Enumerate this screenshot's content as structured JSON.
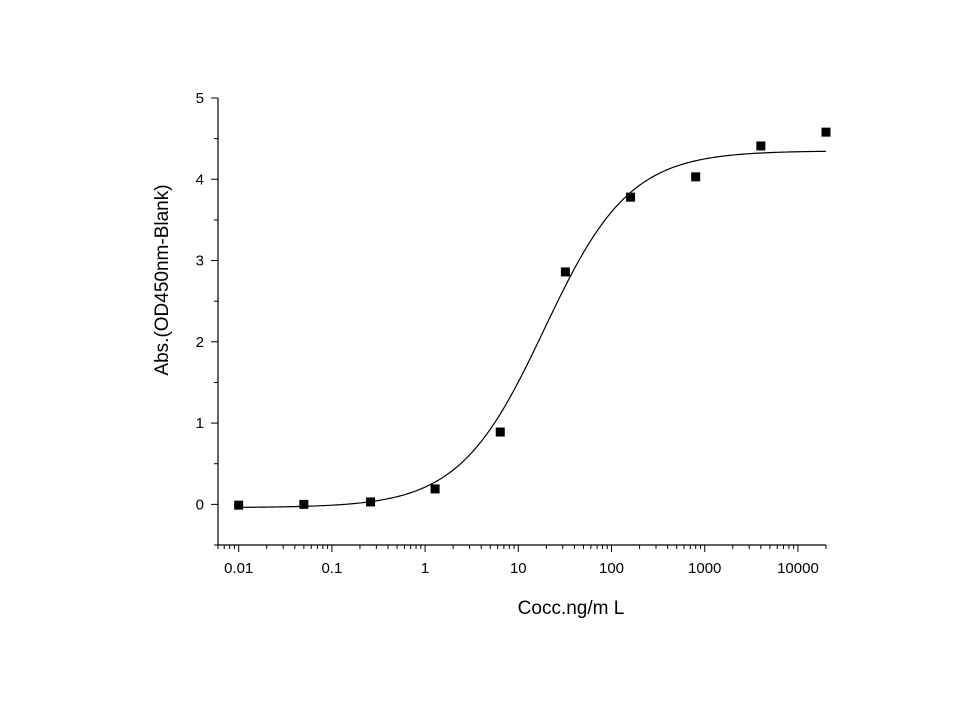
{
  "chart_data": {
    "type": "scatter",
    "xlabel": "Cocc.ng/m L",
    "ylabel": "Abs.(OD450nm-Blank)",
    "xscale": "log",
    "xlim": [
      0.006,
      20000
    ],
    "ylim": [
      -0.5,
      5
    ],
    "grid": false,
    "xticks": [
      0.01,
      0.1,
      1,
      10,
      100,
      1000,
      10000
    ],
    "xtick_labels": [
      "0.01",
      "0.1",
      "1",
      "10",
      "100",
      "1000",
      "10000"
    ],
    "yticks": [
      0,
      1,
      2,
      3,
      4,
      5
    ],
    "ytick_labels": [
      "0",
      "1",
      "2",
      "3",
      "4",
      "5"
    ],
    "series": [
      {
        "kind": "points",
        "marker": "square",
        "x": [
          0.01,
          0.05,
          0.26,
          1.28,
          6.4,
          32,
          160,
          800,
          4000,
          20000
        ],
        "y": [
          -0.01,
          0.0,
          0.03,
          0.19,
          0.89,
          2.86,
          3.78,
          4.03,
          4.41,
          4.58
        ]
      },
      {
        "kind": "fit",
        "model": "4PL",
        "bottom": -0.04,
        "top": 4.35,
        "ec50": 19,
        "hill": 0.95,
        "x_range": [
          0.01,
          20000
        ]
      }
    ]
  }
}
